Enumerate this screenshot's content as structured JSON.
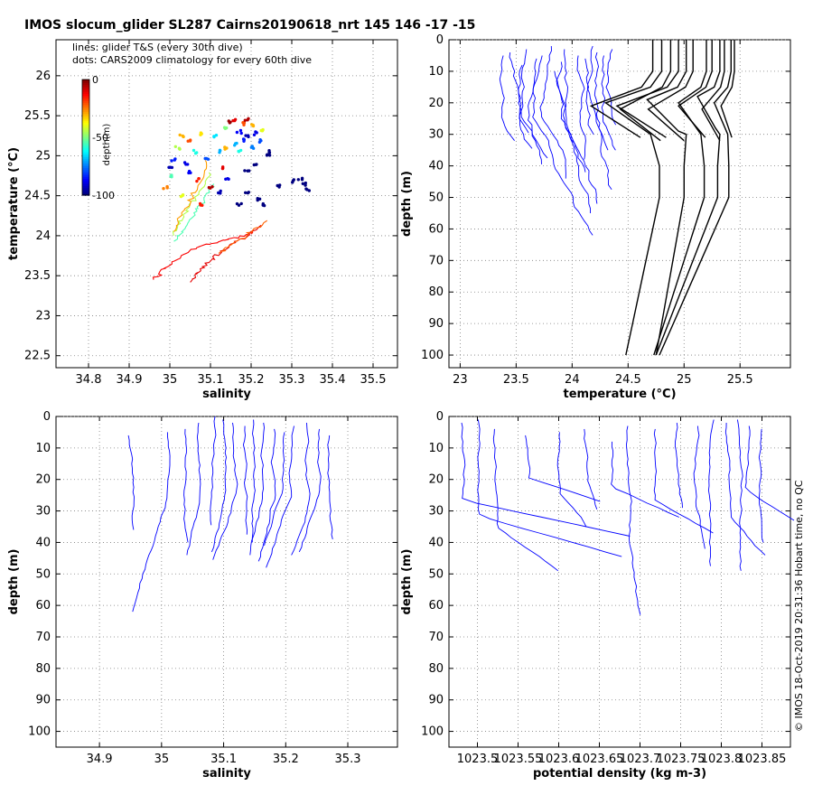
{
  "figure": {
    "title": "IMOS slocum_glider SL287 Cairns20190618_nrt 145  146  -17  -15",
    "credit": "© IMOS 18-Oct-2019 20:31:36 Hobart time, no QC"
  },
  "colors": {
    "glider": "#0000ff",
    "climatology": "#000000",
    "axis": "#000000",
    "grid": "#7f7f7f"
  },
  "chart_data": [
    {
      "type": "scatter",
      "title": "",
      "xlabel": "salinity",
      "ylabel": "temperature (°C)",
      "xlim": [
        34.72,
        35.56
      ],
      "ylim": [
        22.35,
        26.45
      ],
      "xticks": [
        "34.8",
        "34.9",
        "35",
        "35.1",
        "35.2",
        "35.3",
        "35.4",
        "35.5"
      ],
      "yticks": [
        "22.5",
        "23",
        "23.5",
        "24",
        "24.5",
        "25",
        "25.5",
        "26"
      ],
      "grid": true,
      "legend_text": [
        "lines: glider T&S (every 30th dive)",
        "dots: CARS2009 climatology for every 60th dive"
      ],
      "colorbar": {
        "label": "depth(m)",
        "ticks": [
          "0",
          "-50",
          "-100"
        ],
        "range": [
          -100,
          0
        ]
      },
      "glider_lines": [
        {
          "depth": -12,
          "points": [
            [
              35.21,
              24.05
            ],
            [
              35.18,
              24.0
            ],
            [
              35.14,
              23.95
            ],
            [
              35.1,
              23.9
            ],
            [
              35.06,
              23.85
            ],
            [
              35.03,
              23.75
            ],
            [
              35.0,
              23.65
            ],
            [
              34.98,
              23.55
            ],
            [
              34.96,
              23.45
            ]
          ]
        },
        {
          "depth": -10,
          "points": [
            [
              35.22,
              24.12
            ],
            [
              35.19,
              24.0
            ],
            [
              35.16,
              23.9
            ],
            [
              35.13,
              23.8
            ],
            [
              35.1,
              23.7
            ],
            [
              35.08,
              23.6
            ],
            [
              35.06,
              23.5
            ],
            [
              35.05,
              23.42
            ]
          ]
        },
        {
          "depth": -22,
          "points": [
            [
              35.24,
              24.2
            ],
            [
              35.21,
              24.08
            ],
            [
              35.18,
              23.98
            ],
            [
              35.15,
              23.88
            ],
            [
              35.12,
              23.78
            ]
          ]
        },
        {
          "depth": -55,
          "points": [
            [
              35.11,
              24.65
            ],
            [
              35.09,
              24.5
            ],
            [
              35.07,
              24.35
            ],
            [
              35.05,
              24.2
            ],
            [
              35.03,
              24.05
            ],
            [
              35.01,
              23.93
            ]
          ]
        },
        {
          "depth": -45,
          "points": [
            [
              35.1,
              24.8
            ],
            [
              35.08,
              24.62
            ],
            [
              35.06,
              24.45
            ],
            [
              35.04,
              24.3
            ],
            [
              35.02,
              24.15
            ],
            [
              35.01,
              24.0
            ]
          ]
        },
        {
          "depth": -28,
          "points": [
            [
              35.09,
              24.95
            ],
            [
              35.08,
              24.75
            ],
            [
              35.06,
              24.55
            ],
            [
              35.04,
              24.35
            ],
            [
              35.02,
              24.18
            ],
            [
              35.01,
              24.05
            ]
          ]
        }
      ],
      "climatology_dots": [
        {
          "s": 35.03,
          "t": 25.25,
          "d": -30
        },
        {
          "s": 35.05,
          "t": 25.2,
          "d": -20
        },
        {
          "s": 35.08,
          "t": 25.28,
          "d": -35
        },
        {
          "s": 35.02,
          "t": 25.1,
          "d": -45
        },
        {
          "s": 35.06,
          "t": 25.05,
          "d": -60
        },
        {
          "s": 35.01,
          "t": 24.95,
          "d": -85
        },
        {
          "s": 35.04,
          "t": 24.9,
          "d": -90
        },
        {
          "s": 35.09,
          "t": 24.95,
          "d": -80
        },
        {
          "s": 35.12,
          "t": 25.05,
          "d": -70
        },
        {
          "s": 35.0,
          "t": 24.75,
          "d": -55
        },
        {
          "s": 34.99,
          "t": 24.6,
          "d": -25
        },
        {
          "s": 35.07,
          "t": 24.7,
          "d": -15
        },
        {
          "s": 35.1,
          "t": 24.6,
          "d": -5
        },
        {
          "s": 35.13,
          "t": 24.85,
          "d": -10
        },
        {
          "s": 35.03,
          "t": 24.5,
          "d": -40
        },
        {
          "s": 35.0,
          "t": 24.85,
          "d": -95
        },
        {
          "s": 35.05,
          "t": 24.8,
          "d": -88
        },
        {
          "s": 35.11,
          "t": 25.25,
          "d": -65
        },
        {
          "s": 35.14,
          "t": 25.1,
          "d": -30
        },
        {
          "s": 35.15,
          "t": 25.42,
          "d": -2
        },
        {
          "s": 35.16,
          "t": 25.45,
          "d": -10
        },
        {
          "s": 35.18,
          "t": 25.4,
          "d": -20
        },
        {
          "s": 35.2,
          "t": 25.38,
          "d": -30
        },
        {
          "s": 35.17,
          "t": 25.3,
          "d": -88
        },
        {
          "s": 35.19,
          "t": 25.25,
          "d": -95
        },
        {
          "s": 35.21,
          "t": 25.28,
          "d": -90
        },
        {
          "s": 35.18,
          "t": 25.2,
          "d": -85
        },
        {
          "s": 35.22,
          "t": 25.18,
          "d": -80
        },
        {
          "s": 35.16,
          "t": 25.15,
          "d": -70
        },
        {
          "s": 35.2,
          "t": 25.1,
          "d": -75
        },
        {
          "s": 35.14,
          "t": 25.35,
          "d": -50
        },
        {
          "s": 35.19,
          "t": 25.45,
          "d": -5
        },
        {
          "s": 35.23,
          "t": 25.32,
          "d": -40
        },
        {
          "s": 35.17,
          "t": 25.05,
          "d": -60
        },
        {
          "s": 35.24,
          "t": 25.0,
          "d": -100
        },
        {
          "s": 35.25,
          "t": 25.05,
          "d": -100
        },
        {
          "s": 35.21,
          "t": 24.9,
          "d": -100
        },
        {
          "s": 35.19,
          "t": 24.8,
          "d": -100
        },
        {
          "s": 35.32,
          "t": 24.72,
          "d": -100
        },
        {
          "s": 35.33,
          "t": 24.65,
          "d": -100
        },
        {
          "s": 35.34,
          "t": 24.58,
          "d": -100
        },
        {
          "s": 35.3,
          "t": 24.68,
          "d": -100
        },
        {
          "s": 35.22,
          "t": 24.45,
          "d": -100
        },
        {
          "s": 35.23,
          "t": 24.38,
          "d": -100
        },
        {
          "s": 35.19,
          "t": 24.55,
          "d": -100
        },
        {
          "s": 35.17,
          "t": 24.4,
          "d": -100
        },
        {
          "s": 35.27,
          "t": 24.62,
          "d": -100
        },
        {
          "s": 35.12,
          "t": 24.55,
          "d": -95
        },
        {
          "s": 35.14,
          "t": 24.7,
          "d": -90
        },
        {
          "s": 35.08,
          "t": 24.4,
          "d": -15
        }
      ]
    },
    {
      "type": "line",
      "title": "",
      "xlabel": "temperature (°C)",
      "ylabel": "depth (m)",
      "xlim": [
        22.9,
        25.95
      ],
      "ylim": [
        0,
        104
      ],
      "y_reversed": true,
      "xticks": [
        "23",
        "23.5",
        "24",
        "24.5",
        "25",
        "25.5"
      ],
      "yticks": [
        "0",
        "10",
        "20",
        "30",
        "40",
        "50",
        "60",
        "70",
        "80",
        "90",
        "100"
      ],
      "grid": true,
      "climatology_profiles": [
        {
          "t0": 24.72,
          "mix": 21,
          "kink": -0.55,
          "drop": 0.22,
          "surf": 0.0
        },
        {
          "t0": 24.8,
          "mix": 20,
          "kink": -0.5,
          "drop": 0.3,
          "surf": 0.02
        },
        {
          "t0": 24.88,
          "mix": 22,
          "kink": -0.45,
          "drop": 0.28,
          "surf": 0.0
        },
        {
          "t0": 24.95,
          "mix": 21,
          "kink": -0.55,
          "drop": 0.35,
          "surf": 0.01
        },
        {
          "t0": 25.02,
          "mix": 19,
          "kink": -0.35,
          "drop": 0.25,
          "surf": 0.02
        },
        {
          "t0": 25.08,
          "mix": 22,
          "kink": -0.4,
          "drop": 0.3,
          "surf": 0.0
        },
        {
          "t0": 25.2,
          "mix": 20,
          "kink": -0.25,
          "drop": 0.45,
          "surf": 0.01
        },
        {
          "t0": 25.25,
          "mix": 21,
          "kink": -0.3,
          "drop": 0.5,
          "surf": 0.02
        },
        {
          "t0": 25.32,
          "mix": 18,
          "kink": -0.2,
          "drop": 0.55,
          "surf": 0.0
        },
        {
          "t0": 25.36,
          "mix": 22,
          "kink": -0.2,
          "drop": 0.6,
          "surf": 0.01
        },
        {
          "t0": 25.42,
          "mix": 20,
          "kink": -0.15,
          "drop": 0.62,
          "surf": 0.02
        },
        {
          "t0": 25.45,
          "mix": 21,
          "kink": -0.12,
          "drop": 0.7,
          "surf": 0.0
        }
      ],
      "glider_profiles": [
        {
          "t": 23.4,
          "top": 5,
          "bot": 33
        },
        {
          "t": 23.45,
          "top": 4,
          "bot": 30
        },
        {
          "t": 23.55,
          "top": 8,
          "bot": 40
        },
        {
          "t": 23.6,
          "top": 3,
          "bot": 35
        },
        {
          "t": 23.68,
          "top": 6,
          "bot": 38
        },
        {
          "t": 23.75,
          "top": 5,
          "bot": 62
        },
        {
          "t": 23.82,
          "top": 2,
          "bot": 45
        },
        {
          "t": 23.9,
          "top": 7,
          "bot": 52
        },
        {
          "t": 23.95,
          "top": 3,
          "bot": 42
        },
        {
          "t": 24.05,
          "top": 5,
          "bot": 38
        },
        {
          "t": 24.1,
          "top": 6,
          "bot": 30
        },
        {
          "t": 24.18,
          "top": 2,
          "bot": 35
        },
        {
          "t": 24.22,
          "top": 4,
          "bot": 48
        },
        {
          "t": 24.3,
          "top": 5,
          "bot": 36
        },
        {
          "t": 24.35,
          "top": 3,
          "bot": 28
        },
        {
          "t": 23.85,
          "top": 10,
          "bot": 56
        }
      ]
    },
    {
      "type": "line",
      "title": "",
      "xlabel": "salinity",
      "ylabel": "depth (m)",
      "xlim": [
        34.83,
        35.38
      ],
      "ylim": [
        0,
        105
      ],
      "y_reversed": true,
      "xticks": [
        "34.9",
        "35",
        "35.1",
        "35.2",
        "35.3"
      ],
      "yticks": [
        "0",
        "10",
        "20",
        "30",
        "40",
        "50",
        "60",
        "70",
        "80",
        "90",
        "100"
      ],
      "grid": true,
      "glider_profiles": [
        {
          "s": 34.945,
          "top": 6,
          "bot": 36
        },
        {
          "s": 35.01,
          "top": 5,
          "bot": 62
        },
        {
          "s": 35.04,
          "top": 4,
          "bot": 40
        },
        {
          "s": 35.06,
          "top": 2,
          "bot": 45
        },
        {
          "s": 35.085,
          "top": 0,
          "bot": 35
        },
        {
          "s": 35.1,
          "top": 1,
          "bot": 44
        },
        {
          "s": 35.115,
          "top": 2,
          "bot": 46
        },
        {
          "s": 35.135,
          "top": 3,
          "bot": 38
        },
        {
          "s": 35.15,
          "top": 1,
          "bot": 40
        },
        {
          "s": 35.165,
          "top": 2,
          "bot": 44
        },
        {
          "s": 35.18,
          "top": 4,
          "bot": 46
        },
        {
          "s": 35.2,
          "top": 5,
          "bot": 42
        },
        {
          "s": 35.215,
          "top": 3,
          "bot": 48
        },
        {
          "s": 35.235,
          "top": 2,
          "bot": 45
        },
        {
          "s": 35.255,
          "top": 4,
          "bot": 44
        },
        {
          "s": 35.27,
          "top": 6,
          "bot": 40
        }
      ]
    },
    {
      "type": "line",
      "title": "",
      "xlabel": "potential density (kg m-3)",
      "ylabel": "depth (m)",
      "xlim": [
        1023.465,
        1023.885
      ],
      "ylim": [
        0,
        105
      ],
      "y_reversed": true,
      "xticks": [
        "1023.5",
        "1023.55",
        "1023.6",
        "1023.65",
        "1023.7",
        "1023.75",
        "1023.8",
        "1023.85"
      ],
      "yticks": [
        "0",
        "10",
        "20",
        "30",
        "40",
        "50",
        "60",
        "70",
        "80",
        "90",
        "100"
      ],
      "grid": true,
      "glider_profiles": [
        {
          "r": 1023.48,
          "top": 2,
          "bot": 38,
          "tail": 1023.69
        },
        {
          "r": 1023.5,
          "top": 1,
          "bot": 45,
          "tail": 1023.68
        },
        {
          "r": 1023.52,
          "top": 4,
          "bot": 50,
          "tail": 1023.6
        },
        {
          "r": 1023.56,
          "top": 6,
          "bot": 28,
          "tail": 1023.66
        },
        {
          "r": 1023.6,
          "top": 5,
          "bot": 35,
          "tail": 1023.63
        },
        {
          "r": 1023.63,
          "top": 4,
          "bot": 30,
          "tail": 1023.64
        },
        {
          "r": 1023.665,
          "top": 8,
          "bot": 32,
          "tail": 1023.75
        },
        {
          "r": 1023.685,
          "top": 3,
          "bot": 63,
          "tail": 1023.69
        },
        {
          "r": 1023.72,
          "top": 4,
          "bot": 38,
          "tail": 1023.8
        },
        {
          "r": 1023.745,
          "top": 2,
          "bot": 30,
          "tail": 1023.75
        },
        {
          "r": 1023.77,
          "top": 3,
          "bot": 42,
          "tail": 1023.78
        },
        {
          "r": 1023.79,
          "top": 1,
          "bot": 48,
          "tail": 1023.79
        },
        {
          "r": 1023.805,
          "top": 2,
          "bot": 45,
          "tail": 1023.85
        },
        {
          "r": 1023.82,
          "top": 1,
          "bot": 50,
          "tail": 1023.82
        },
        {
          "r": 1023.835,
          "top": 3,
          "bot": 33,
          "tail": 1023.89
        },
        {
          "r": 1023.85,
          "top": 4,
          "bot": 40,
          "tail": 1023.855
        }
      ]
    }
  ]
}
